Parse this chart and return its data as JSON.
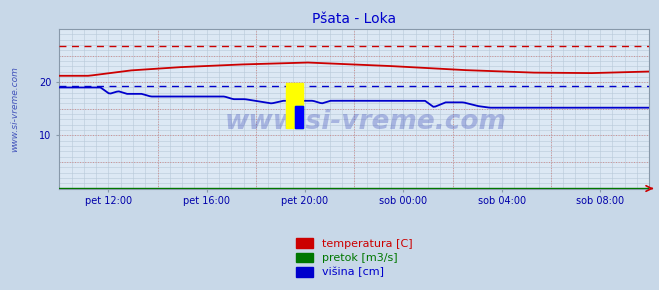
{
  "title": "Pšata - Loka",
  "title_color": "#0000cc",
  "fig_bg_color": "#c8d8e8",
  "plot_bg_color": "#dce8f4",
  "ylim": [
    0,
    30
  ],
  "yticks": [
    10,
    20
  ],
  "xlabels": [
    "pet 12:00",
    "pet 16:00",
    "pet 20:00",
    "sob 00:00",
    "sob 04:00",
    "sob 08:00"
  ],
  "tick_color": "#0000aa",
  "ylabel_text": "www.si-vreme.com",
  "ylabel_color": "#4455bb",
  "temp_color": "#cc0000",
  "pretok_color": "#007700",
  "visina_color": "#0000cc",
  "temp_max": 26.8,
  "visina_max": 19.2,
  "legend_labels": [
    "temperatura [C]",
    "pretok [m3/s]",
    "višina [cm]"
  ],
  "legend_colors": [
    "#cc0000",
    "#007700",
    "#0000cc"
  ],
  "watermark_text": "www.si-vreme.com",
  "watermark_color": "#4455bb",
  "watermark_alpha": 0.35,
  "logo_yellow": "#ffff00",
  "logo_cyan": "#00ccff",
  "logo_blue": "#0000ff"
}
